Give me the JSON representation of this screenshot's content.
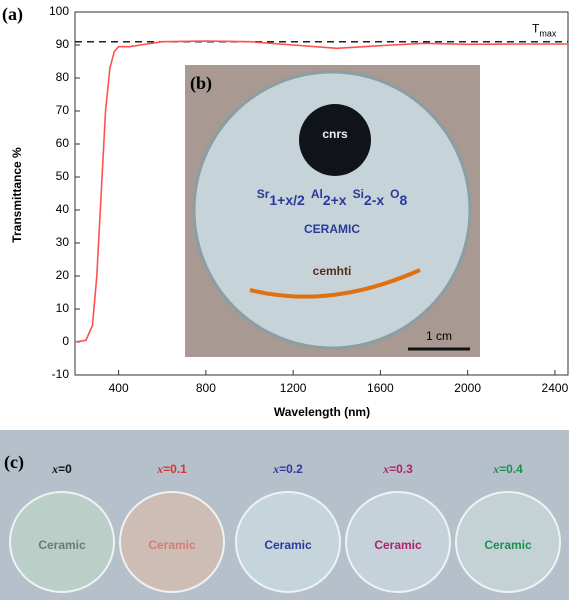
{
  "chart_data": {
    "type": "line",
    "panel_label": "(a)",
    "x_label": "Wavelength (nm)",
    "y_label": "Transmittance %",
    "x": [
      200,
      250,
      280,
      300,
      320,
      340,
      360,
      380,
      400,
      450,
      500,
      600,
      800,
      1000,
      1200,
      1400,
      1600,
      1800,
      2000,
      2200,
      2460
    ],
    "series": [
      {
        "color": "#ff5050",
        "values": [
          0,
          0.5,
          5,
          20,
          45,
          70,
          83,
          88,
          89.5,
          89.5,
          90,
          91,
          91.2,
          91,
          90,
          89,
          89.8,
          90.5,
          90.2,
          90.3,
          90.3
        ]
      }
    ],
    "xlim": [
      200,
      2460
    ],
    "xticks": [
      400,
      800,
      1200,
      1600,
      2000,
      2400
    ],
    "ylim": [
      -10,
      100
    ],
    "yticks": [
      -10,
      0,
      10,
      20,
      30,
      40,
      50,
      60,
      70,
      80,
      90,
      100
    ],
    "reference_line": {
      "value": 91,
      "label": "T",
      "label_sub": "max",
      "color": "#222222"
    }
  },
  "inset": {
    "panel_label": "(b)",
    "logo_top": "cnrs",
    "formula": [
      {
        "base": "Sr",
        "sub": "1+x/2"
      },
      {
        "base": "Al",
        "sub": "2+x"
      },
      {
        "base": "Si",
        "sub": "2-x"
      },
      {
        "base": "O",
        "sub": "8"
      }
    ],
    "subtitle": "CERAMIC",
    "logo_bottom": "cemhti",
    "scale": "1 cm"
  },
  "photo": {
    "panel_label": "(c)",
    "samples": [
      {
        "var": "x",
        "eq": "=0",
        "color": "#111111",
        "disk_text": "Ceramic",
        "disk": "#b9cfc8"
      },
      {
        "var": "x",
        "eq": "=0.1",
        "color": "#e03030",
        "disk_text": "Ceramic",
        "disk": "#cdbdb4"
      },
      {
        "var": "x",
        "eq": "=0.2",
        "color": "#2a3aa0",
        "disk_text": "Ceramic",
        "disk": "#c6d4dc"
      },
      {
        "var": "x",
        "eq": "=0.3",
        "color": "#b02070",
        "disk_text": "Ceramic",
        "disk": "#c6d2da"
      },
      {
        "var": "x",
        "eq": "=0.4",
        "color": "#1a9050",
        "disk_text": "Ceramic",
        "disk": "#c4d2d6"
      }
    ]
  }
}
